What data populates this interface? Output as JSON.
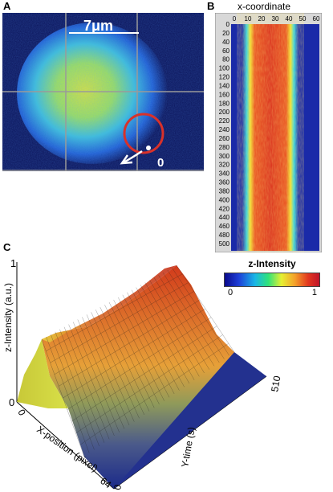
{
  "figure": {
    "panel_a": {
      "letter": "A",
      "scale_label": "7μm",
      "origin_label": "0"
    },
    "panel_b": {
      "letter": "B",
      "title": "x-coordinate",
      "x_ticks": [
        "0",
        "10",
        "20",
        "30",
        "40",
        "50",
        "60"
      ],
      "y_ticks": [
        "0",
        "20",
        "40",
        "60",
        "80",
        "100",
        "120",
        "140",
        "160",
        "180",
        "200",
        "220",
        "240",
        "260",
        "280",
        "300",
        "320",
        "340",
        "360",
        "380",
        "400",
        "420",
        "440",
        "460",
        "480",
        "500"
      ]
    },
    "panel_c": {
      "letter": "C",
      "zlabel": "z-Intensity (a.u.)",
      "z_top": "1",
      "z_bottom": "0",
      "xlabel": "X-position (pixel)",
      "x_start": "0",
      "x_end": "64",
      "ylabel": "Y-time (s)",
      "y_start": "0",
      "y_end": "510"
    },
    "colorbar": {
      "title": "z-Intensity",
      "min_label": "0",
      "max_label": "1"
    }
  },
  "colors": {
    "background": "#0a1257",
    "ring": "#d8312a",
    "grid": "#9a9a9a",
    "surface_low": "#1b2a8a",
    "surface_high": "#c6321c"
  }
}
